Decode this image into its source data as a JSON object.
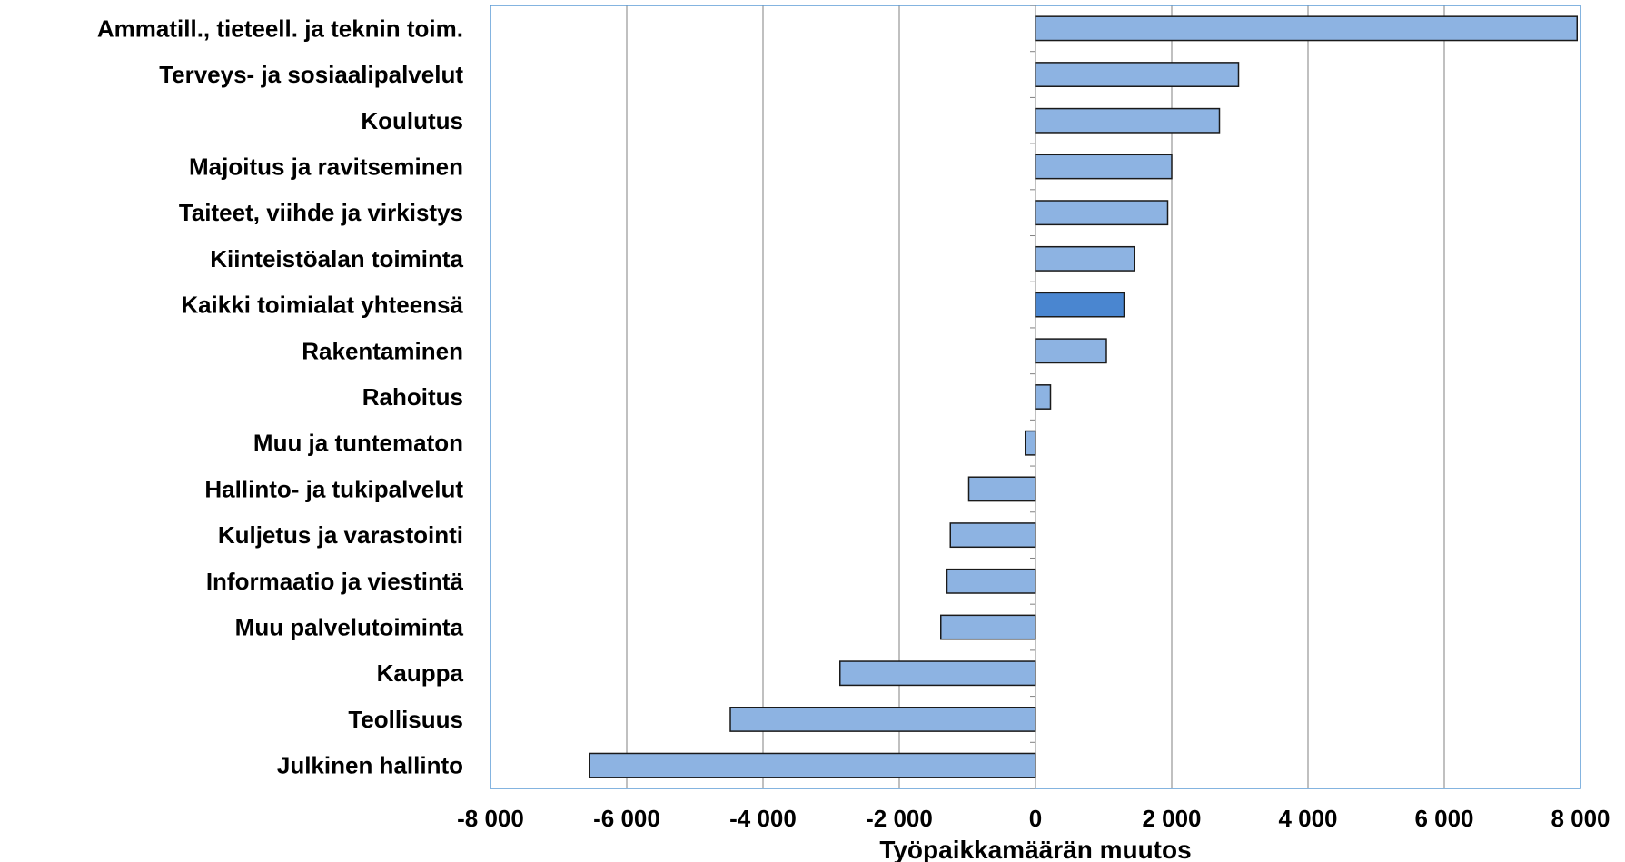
{
  "chart_data": {
    "type": "bar",
    "orientation": "horizontal",
    "categories": [
      "Ammatill., tieteell. ja teknin toim.",
      "Terveys- ja sosiaalipalvelut",
      "Koulutus",
      "Majoitus ja ravitseminen",
      "Taiteet, viihde ja virkistys",
      "Kiinteistöalan toiminta",
      "Kaikki toimialat yhteensä",
      "Rakentaminen",
      "Rahoitus",
      "Muu ja tuntematon",
      "Hallinto- ja tukipalvelut",
      "Kuljetus ja varastointi",
      "Informaatio ja viestintä",
      "Muu palvelutoiminta",
      "Kauppa",
      "Teollisuus",
      "Julkinen hallinto"
    ],
    "values": [
      7950,
      2980,
      2700,
      2000,
      1940,
      1450,
      1300,
      1040,
      220,
      -150,
      -980,
      -1250,
      -1300,
      -1390,
      -2870,
      -4480,
      -6550
    ],
    "highlight_category": "Kaikki toimialat yhteensä",
    "xlim": [
      -8000,
      8000
    ],
    "x_ticks": [
      -8000,
      -6000,
      -4000,
      -2000,
      0,
      2000,
      4000,
      6000,
      8000
    ],
    "x_tick_labels": [
      "-8 000",
      "-6 000",
      "-4 000",
      "-2 000",
      "0",
      "2 000",
      "4 000",
      "6 000",
      "8 000"
    ],
    "xlabel": "Työpaikkamäärän muutos",
    "ylabel": "",
    "title": "",
    "grid": "vertical",
    "legend": "none",
    "colors": {
      "bar": "#8db3e2",
      "bar_highlight": "#4a86d0",
      "bar_edge": "#1a1a1a",
      "grid": "#808080",
      "frame": "#5b9bd5"
    }
  }
}
